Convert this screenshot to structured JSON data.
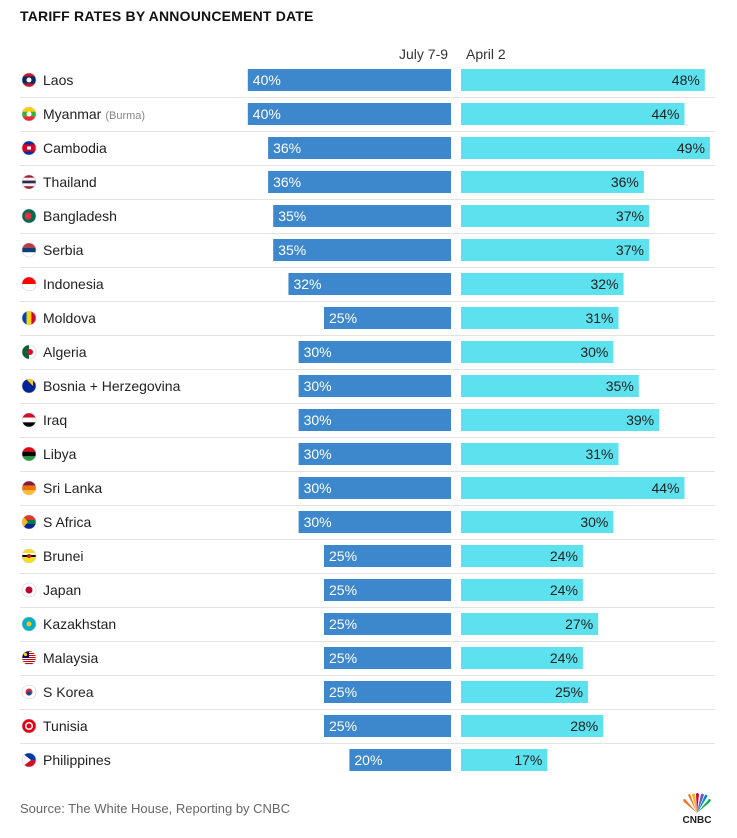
{
  "title": "TARIFF RATES BY ANNOUNCEMENT DATE",
  "source": "Source: The White House, Reporting by CNBC",
  "logo_text": "CNBC",
  "colors": {
    "july": "#3d87cc",
    "april": "#5ce1ee",
    "separator": "#e3e3e3"
  },
  "chart_data": {
    "type": "bar",
    "orientation": "horizontal-butterfly",
    "series": [
      {
        "name": "July 7-9",
        "values": [
          40,
          40,
          36,
          36,
          35,
          35,
          32,
          25,
          30,
          30,
          30,
          30,
          30,
          30,
          25,
          25,
          25,
          25,
          25,
          25,
          20
        ]
      },
      {
        "name": "April 2",
        "values": [
          48,
          44,
          49,
          36,
          37,
          37,
          32,
          31,
          30,
          35,
          39,
          31,
          44,
          30,
          24,
          24,
          27,
          24,
          25,
          28,
          17
        ]
      }
    ],
    "categories": [
      "Laos",
      "Myanmar",
      "Cambodia",
      "Thailand",
      "Bangladesh",
      "Serbia",
      "Indonesia",
      "Moldova",
      "Algeria",
      "Bosnia + Herzegovina",
      "Iraq",
      "Libya",
      "Sri Lanka",
      "S Africa",
      "Brunei",
      "Japan",
      "Kazakhstan",
      "Malaysia",
      "S Korea",
      "Tunisia",
      "Philippines"
    ],
    "category_notes": [
      "",
      "(Burma)",
      "",
      "",
      "",
      "",
      "",
      "",
      "",
      "",
      "",
      "",
      "",
      "",
      "",
      "",
      "",
      "",
      "",
      "",
      ""
    ],
    "flag_icons": [
      "laos-flag-icon",
      "myanmar-flag-icon",
      "cambodia-flag-icon",
      "thailand-flag-icon",
      "bangladesh-flag-icon",
      "serbia-flag-icon",
      "indonesia-flag-icon",
      "moldova-flag-icon",
      "algeria-flag-icon",
      "bosnia-flag-icon",
      "iraq-flag-icon",
      "libya-flag-icon",
      "sri-lanka-flag-icon",
      "south-africa-flag-icon",
      "brunei-flag-icon",
      "japan-flag-icon",
      "kazakhstan-flag-icon",
      "malaysia-flag-icon",
      "south-korea-flag-icon",
      "tunisia-flag-icon",
      "philippines-flag-icon"
    ],
    "value_suffix": "%",
    "xlim": [
      0,
      50
    ],
    "grid": false,
    "legend": "column-headers-top"
  }
}
